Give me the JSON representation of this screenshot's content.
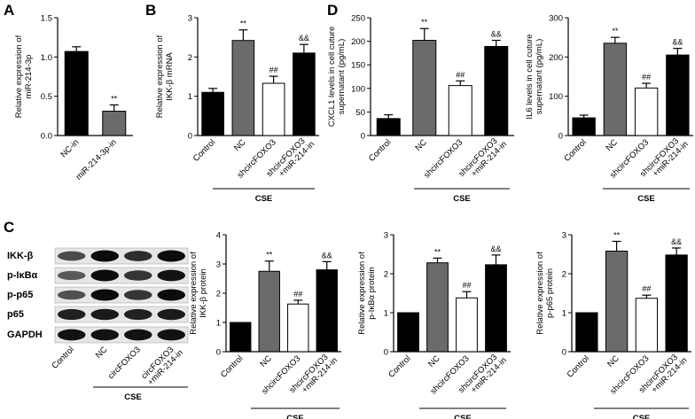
{
  "panels": [
    {
      "letter": "A"
    },
    {
      "letter": "B"
    },
    {
      "letter": "C"
    },
    {
      "letter": "D"
    }
  ],
  "western_blot": {
    "rows": [
      "IKK-β",
      "p-IκBα",
      "p-p65",
      "p65",
      "GAPDH"
    ],
    "lanes": [
      "Control",
      "NC",
      "circFOXO3",
      "circFOXO3\n+miR-214-in"
    ],
    "group_label": "CSE"
  },
  "colors": {
    "black": "#000000",
    "gray": "#6b6b6b",
    "white": "#ffffff"
  },
  "chart_data": [
    {
      "id": "A",
      "type": "bar",
      "ylabel": "Relative expression of\nmiR-214-3p",
      "ylim": [
        0,
        1.5
      ],
      "yticks": [
        "0.0",
        "0.5",
        "1.0",
        "1.5"
      ],
      "categories": [
        "NC-in",
        "miR-214-3p-in"
      ],
      "values": [
        1.07,
        0.31
      ],
      "errors": [
        0.06,
        0.08
      ],
      "fills": [
        "black",
        "gray"
      ],
      "annotations": [
        "",
        "**"
      ],
      "group_label": ""
    },
    {
      "id": "B",
      "type": "bar",
      "ylabel": "Relative expression of\nIKK-β mRNA",
      "ylim": [
        0,
        3
      ],
      "yticks": [
        "0",
        "1",
        "2",
        "3"
      ],
      "categories": [
        "Control",
        "NC",
        "shcircFOXO3",
        "shcircFOXO3\n+miR-214-in"
      ],
      "values": [
        1.1,
        2.42,
        1.33,
        2.1
      ],
      "errors": [
        0.1,
        0.27,
        0.18,
        0.22
      ],
      "fills": [
        "black",
        "gray",
        "white",
        "black"
      ],
      "annotations": [
        "",
        "**",
        "##",
        "&&"
      ],
      "group_label": "CSE"
    },
    {
      "id": "D1",
      "type": "bar",
      "ylabel": "CXCL1 levels in cell cuture\nsupernatant (pg/mL)",
      "ylim": [
        0,
        250
      ],
      "yticks": [
        "0",
        "50",
        "100",
        "150",
        "200",
        "250"
      ],
      "categories": [
        "Control",
        "NC",
        "shcircFOXO3",
        "shcircFOXO3\n+miR-214-in"
      ],
      "values": [
        36,
        202,
        106,
        189
      ],
      "errors": [
        8,
        25,
        10,
        13
      ],
      "fills": [
        "black",
        "gray",
        "white",
        "black"
      ],
      "annotations": [
        "",
        "**",
        "##",
        "&&"
      ],
      "group_label": "CSE"
    },
    {
      "id": "D2",
      "type": "bar",
      "ylabel": "IL6 levels in cell cuture\nsupernatant (pg/mL)",
      "ylim": [
        0,
        300
      ],
      "yticks": [
        "0",
        "100",
        "200",
        "300"
      ],
      "categories": [
        "Control",
        "NC",
        "shcircFOXO3",
        "shcircFOXO3\n+miR-214-in"
      ],
      "values": [
        45,
        235,
        121,
        205
      ],
      "errors": [
        7,
        15,
        12,
        17
      ],
      "fills": [
        "black",
        "gray",
        "white",
        "black"
      ],
      "annotations": [
        "",
        "**",
        "##",
        "&&"
      ],
      "group_label": "CSE"
    },
    {
      "id": "C1",
      "type": "bar",
      "ylabel": "Relative expression of\nIKK-β protein",
      "ylim": [
        0,
        4
      ],
      "yticks": [
        "0",
        "1",
        "2",
        "3",
        "4"
      ],
      "categories": [
        "Control",
        "NC",
        "shcircFOXO3",
        "shcircFOXO3\n+miR-214-in"
      ],
      "values": [
        1.0,
        2.75,
        1.63,
        2.8
      ],
      "errors": [
        0,
        0.35,
        0.13,
        0.28
      ],
      "fills": [
        "black",
        "gray",
        "white",
        "black"
      ],
      "annotations": [
        "",
        "**",
        "##",
        "&&"
      ],
      "group_label": "CSE"
    },
    {
      "id": "C2",
      "type": "bar",
      "ylabel": "Relative expression of\np-IκBα protein",
      "ylim": [
        0,
        3
      ],
      "yticks": [
        "0",
        "1",
        "2",
        "3"
      ],
      "categories": [
        "Control",
        "NC",
        "shcircFOXO3",
        "shcircFOXO3\n+miR-214-in"
      ],
      "values": [
        1.0,
        2.28,
        1.38,
        2.23
      ],
      "errors": [
        0,
        0.12,
        0.16,
        0.25
      ],
      "fills": [
        "black",
        "gray",
        "white",
        "black"
      ],
      "annotations": [
        "",
        "**",
        "##",
        "&&"
      ],
      "group_label": "CSE"
    },
    {
      "id": "C3",
      "type": "bar",
      "ylabel": "Relative expression of\np-p65 protein",
      "ylim": [
        0,
        3
      ],
      "yticks": [
        "0",
        "1",
        "2",
        "3"
      ],
      "categories": [
        "Control",
        "NC",
        "shcircFOXO3",
        "shcircFOXO3\n+miR-214-in"
      ],
      "values": [
        1.0,
        2.58,
        1.37,
        2.48
      ],
      "errors": [
        0,
        0.25,
        0.08,
        0.18
      ],
      "fills": [
        "black",
        "gray",
        "white",
        "black"
      ],
      "annotations": [
        "",
        "**",
        "##",
        "&&"
      ],
      "group_label": "CSE"
    }
  ]
}
